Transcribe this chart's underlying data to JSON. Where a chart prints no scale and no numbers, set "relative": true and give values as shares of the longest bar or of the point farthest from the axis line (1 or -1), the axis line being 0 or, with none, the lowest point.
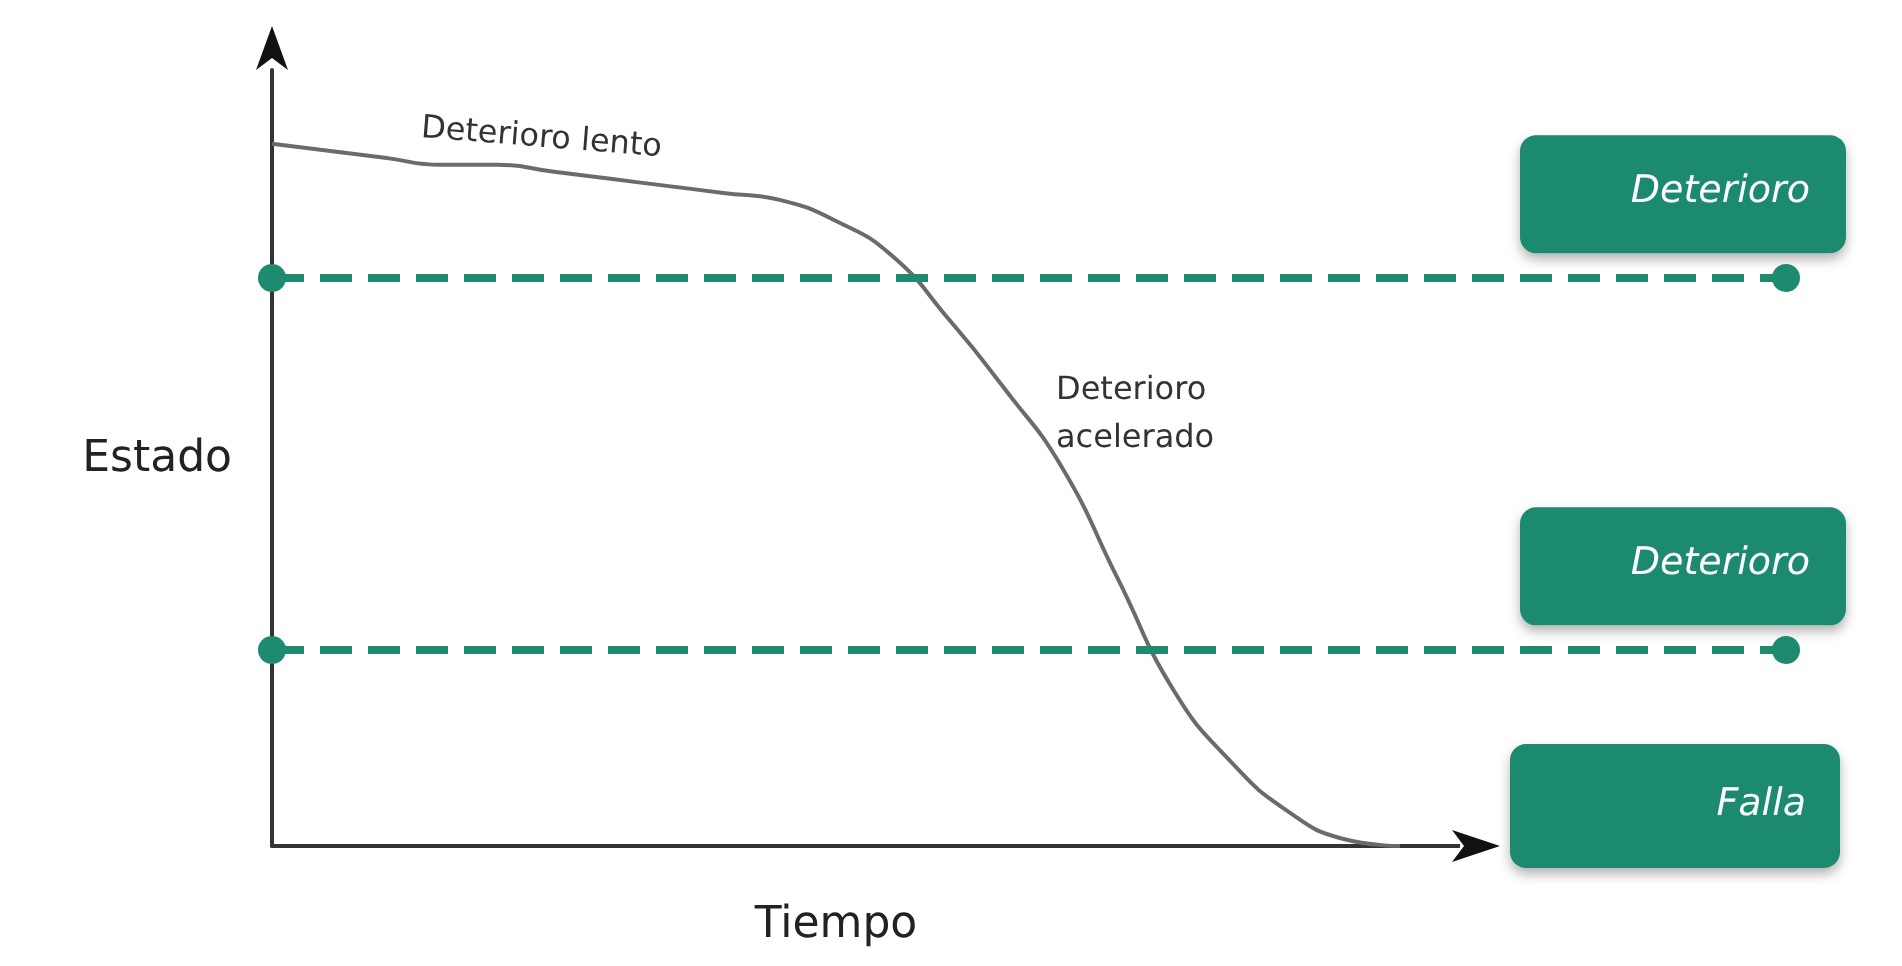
{
  "chart_data": {
    "type": "line",
    "relative": true,
    "xlabel": "Tiempo",
    "ylabel": "Estado",
    "categories": [
      null,
      null,
      null,
      null,
      null,
      null,
      null,
      null,
      null,
      null,
      null,
      null,
      null,
      null,
      null,
      null,
      null,
      null,
      null,
      null,
      null
    ],
    "series": [
      {
        "color": "#6b6b6b",
        "values": [
          1,
          0.99,
          0.98,
          0.97,
          0.97,
          0.96,
          0.95,
          0.94,
          0.93,
          0.92,
          0.89,
          0.84,
          0.75,
          0.65,
          0.54,
          0.38,
          0.22,
          0.12,
          0.05,
          0.01,
          0
        ]
      }
    ],
    "marker": "none",
    "ref_lines": [
      {
        "axis": "y",
        "value": 0.81,
        "label": "Deterioro",
        "color": "#1e8a6e",
        "line_style": "dashed"
      },
      {
        "axis": "y",
        "value": 0.28,
        "label": "Deterioro",
        "color": "#1e8a6e",
        "line_style": "dashed"
      }
    ],
    "annotations": [
      "Deterioro lento",
      "Deterioro acelerado",
      "Falla"
    ]
  }
}
